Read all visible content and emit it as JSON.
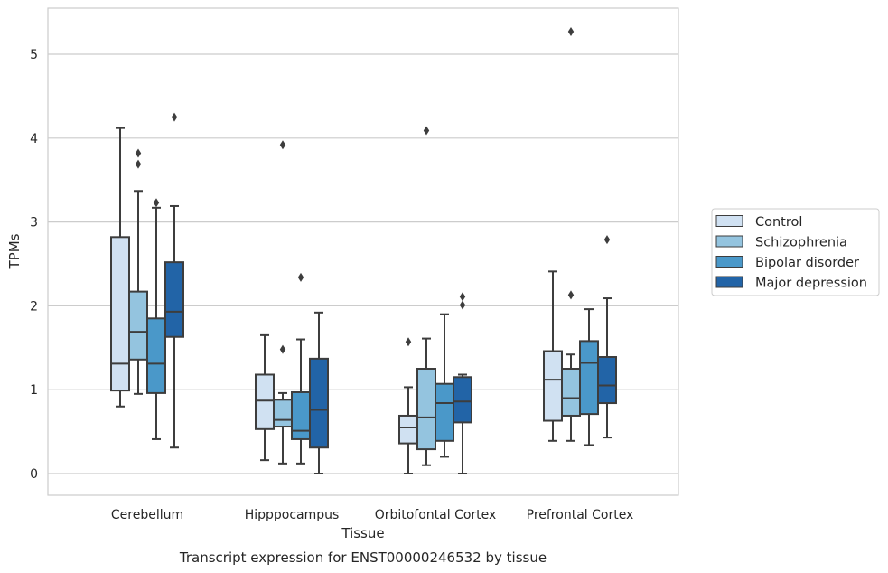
{
  "chart_data": {
    "type": "box",
    "title": "",
    "caption": "Transcript expression for ENST00000246532 by tissue",
    "xlabel": "Tissue",
    "ylabel": "TPMs",
    "ylim": [
      -0.25,
      5.55
    ],
    "yticks": [
      0,
      1,
      2,
      3,
      4,
      5
    ],
    "grid": "horizontal",
    "legend_position": "right",
    "categories": [
      "Cerebellum",
      "Hipppocampus",
      "Orbitofontal Cortex",
      "Prefrontal Cortex"
    ],
    "series": [
      {
        "name": "Control",
        "color": "#d0e1f2",
        "boxes": [
          {
            "whislo": 0.8,
            "q1": 0.99,
            "med": 1.31,
            "q3": 2.82,
            "whishi": 4.12,
            "fliers": []
          },
          {
            "whislo": 0.16,
            "q1": 0.53,
            "med": 0.87,
            "q3": 1.18,
            "whishi": 1.65,
            "fliers": []
          },
          {
            "whislo": 0.0,
            "q1": 0.36,
            "med": 0.55,
            "q3": 0.69,
            "whishi": 1.03,
            "fliers": [
              1.57
            ]
          },
          {
            "whislo": 0.39,
            "q1": 0.63,
            "med": 1.12,
            "q3": 1.46,
            "whishi": 2.41,
            "fliers": []
          }
        ]
      },
      {
        "name": "Schizophrenia",
        "color": "#94c4df",
        "boxes": [
          {
            "whislo": 0.95,
            "q1": 1.36,
            "med": 1.69,
            "q3": 2.17,
            "whishi": 3.37,
            "fliers": [
              3.69,
              3.82
            ]
          },
          {
            "whislo": 0.12,
            "q1": 0.56,
            "med": 0.64,
            "q3": 0.88,
            "whishi": 0.96,
            "fliers": [
              1.48,
              3.92
            ]
          },
          {
            "whislo": 0.1,
            "q1": 0.29,
            "med": 0.67,
            "q3": 1.25,
            "whishi": 1.61,
            "fliers": [
              4.09
            ]
          },
          {
            "whislo": 0.39,
            "q1": 0.69,
            "med": 0.9,
            "q3": 1.25,
            "whishi": 1.42,
            "fliers": [
              2.13,
              5.27
            ]
          }
        ]
      },
      {
        "name": "Bipolar disorder",
        "color": "#4a98c9",
        "boxes": [
          {
            "whislo": 0.41,
            "q1": 0.96,
            "med": 1.31,
            "q3": 1.85,
            "whishi": 3.17,
            "fliers": [
              3.23
            ]
          },
          {
            "whislo": 0.12,
            "q1": 0.41,
            "med": 0.51,
            "q3": 0.97,
            "whishi": 1.6,
            "fliers": [
              2.34
            ]
          },
          {
            "whislo": 0.2,
            "q1": 0.39,
            "med": 0.84,
            "q3": 1.07,
            "whishi": 1.9,
            "fliers": []
          },
          {
            "whislo": 0.34,
            "q1": 0.71,
            "med": 1.32,
            "q3": 1.58,
            "whishi": 1.96,
            "fliers": []
          }
        ]
      },
      {
        "name": "Major depression",
        "color": "#2264a7",
        "boxes": [
          {
            "whislo": 0.31,
            "q1": 1.63,
            "med": 1.93,
            "q3": 2.52,
            "whishi": 3.19,
            "fliers": [
              4.25
            ]
          },
          {
            "whislo": 0.0,
            "q1": 0.31,
            "med": 0.76,
            "q3": 1.37,
            "whishi": 1.92,
            "fliers": []
          },
          {
            "whislo": 0.0,
            "q1": 0.61,
            "med": 0.86,
            "q3": 1.15,
            "whishi": 1.18,
            "fliers": [
              2.01,
              2.11
            ]
          },
          {
            "whislo": 0.43,
            "q1": 0.84,
            "med": 1.05,
            "q3": 1.39,
            "whishi": 2.09,
            "fliers": [
              2.79
            ]
          }
        ]
      }
    ]
  }
}
